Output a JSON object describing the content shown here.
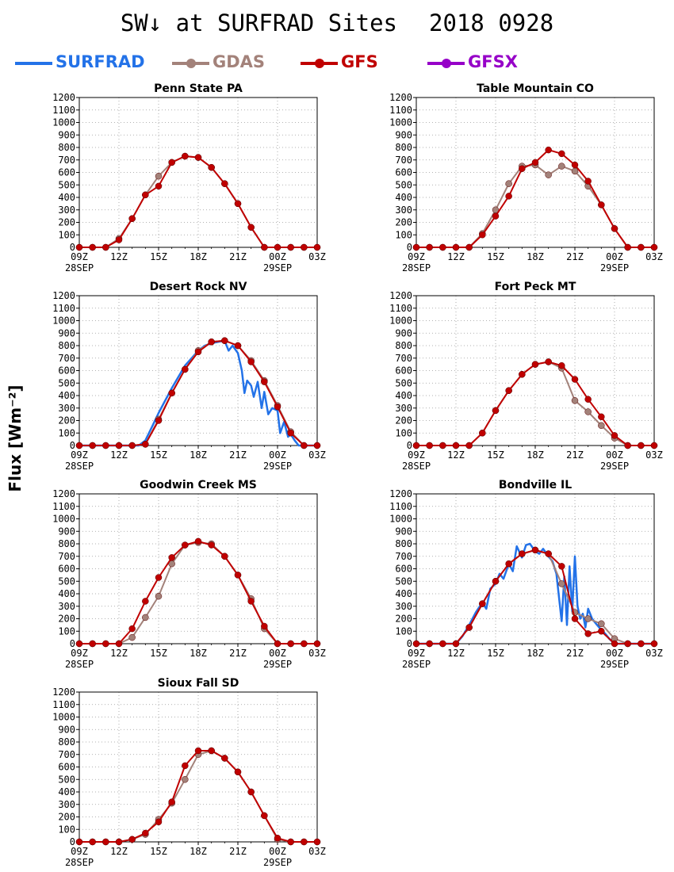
{
  "title": {
    "main": "SW↓ at SURFRAD Sites",
    "date": "2018 0928"
  },
  "legend": [
    {
      "name": "SURFRAD",
      "color": "#2372e8",
      "marker": false
    },
    {
      "name": "GDAS",
      "color": "#a3827a",
      "marker": true
    },
    {
      "name": "GFS",
      "color": "#c00000",
      "marker": true
    },
    {
      "name": "GFSX",
      "color": "#9600c8",
      "marker": true
    }
  ],
  "ylabel": "Flux [Wm⁻²]",
  "chart_data": [
    {
      "type": "line",
      "title": "Penn State PA",
      "ylim": [
        0,
        1200
      ],
      "xlim": [
        9,
        27
      ],
      "xticks": [
        9,
        12,
        15,
        18,
        21,
        24,
        27
      ],
      "xtick_labels": [
        "09Z",
        "12Z",
        "15Z",
        "18Z",
        "21Z",
        "00Z",
        "03Z"
      ],
      "date_labels": [
        {
          "x": 9,
          "text": "28SEP"
        },
        {
          "x": 24,
          "text": "29SEP"
        }
      ],
      "yticks": [
        0,
        100,
        200,
        300,
        400,
        500,
        600,
        700,
        800,
        900,
        1000,
        1100,
        1200
      ],
      "grid": true,
      "series": [
        {
          "name": "GDAS",
          "x": [
            9,
            10,
            11,
            12,
            13,
            14,
            15,
            16,
            17,
            18,
            19,
            20,
            21,
            22,
            23,
            24,
            25,
            26,
            27
          ],
          "values": [
            0,
            0,
            0,
            70,
            230,
            420,
            570,
            680,
            730,
            720,
            640,
            510,
            350,
            160,
            0,
            0,
            0,
            0,
            0
          ]
        },
        {
          "name": "GFS",
          "x": [
            9,
            10,
            11,
            12,
            13,
            14,
            15,
            16,
            17,
            18,
            19,
            20,
            21,
            22,
            23,
            24,
            25,
            26,
            27
          ],
          "values": [
            0,
            0,
            0,
            60,
            230,
            420,
            490,
            680,
            730,
            720,
            640,
            510,
            350,
            160,
            0,
            0,
            0,
            0,
            0
          ]
        }
      ]
    },
    {
      "type": "line",
      "title": "Table Mountain CO",
      "ylim": [
        0,
        1200
      ],
      "xlim": [
        9,
        27
      ],
      "xticks": [
        9,
        12,
        15,
        18,
        21,
        24,
        27
      ],
      "xtick_labels": [
        "09Z",
        "12Z",
        "15Z",
        "18Z",
        "21Z",
        "00Z",
        "03Z"
      ],
      "date_labels": [
        {
          "x": 9,
          "text": "28SEP"
        },
        {
          "x": 24,
          "text": "29SEP"
        }
      ],
      "yticks": [
        0,
        100,
        200,
        300,
        400,
        500,
        600,
        700,
        800,
        900,
        1000,
        1100,
        1200
      ],
      "grid": true,
      "series": [
        {
          "name": "GDAS",
          "x": [
            9,
            10,
            11,
            12,
            13,
            14,
            15,
            16,
            17,
            18,
            19,
            20,
            21,
            22,
            23,
            24,
            25,
            26,
            27
          ],
          "values": [
            0,
            0,
            0,
            0,
            0,
            110,
            300,
            510,
            650,
            660,
            580,
            650,
            610,
            490,
            340,
            150,
            0,
            0,
            0
          ]
        },
        {
          "name": "GFS",
          "x": [
            9,
            10,
            11,
            12,
            13,
            14,
            15,
            16,
            17,
            18,
            19,
            20,
            21,
            22,
            23,
            24,
            25,
            26,
            27
          ],
          "values": [
            0,
            0,
            0,
            0,
            0,
            100,
            250,
            410,
            630,
            680,
            780,
            750,
            660,
            530,
            340,
            150,
            0,
            0,
            0
          ]
        }
      ]
    },
    {
      "type": "line",
      "title": "Desert Rock NV",
      "ylim": [
        0,
        1200
      ],
      "xlim": [
        9,
        27
      ],
      "xticks": [
        9,
        12,
        15,
        18,
        21,
        24,
        27
      ],
      "xtick_labels": [
        "09Z",
        "12Z",
        "15Z",
        "18Z",
        "21Z",
        "00Z",
        "03Z"
      ],
      "date_labels": [
        {
          "x": 9,
          "text": "28SEP"
        },
        {
          "x": 24,
          "text": "29SEP"
        }
      ],
      "yticks": [
        0,
        100,
        200,
        300,
        400,
        500,
        600,
        700,
        800,
        900,
        1000,
        1100,
        1200
      ],
      "grid": true,
      "series": [
        {
          "name": "SURFRAD",
          "x": [
            9,
            13.5,
            14,
            14.5,
            15,
            15.5,
            16,
            16.5,
            17,
            17.5,
            18,
            18.5,
            19,
            19.5,
            20,
            20.3,
            20.6,
            21,
            21.3,
            21.5,
            21.7,
            22,
            22.2,
            22.5,
            22.8,
            23,
            23.3,
            23.6,
            24,
            24.2,
            24.5,
            24.8,
            25,
            25.3,
            25.6,
            27
          ],
          "values": [
            0,
            0,
            40,
            150,
            260,
            360,
            460,
            550,
            640,
            700,
            760,
            800,
            820,
            830,
            840,
            760,
            800,
            740,
            600,
            420,
            520,
            480,
            390,
            510,
            300,
            430,
            250,
            300,
            280,
            100,
            190,
            70,
            90,
            40,
            0,
            0
          ]
        },
        {
          "name": "GDAS",
          "x": [
            9,
            10,
            11,
            12,
            13,
            14,
            15,
            16,
            17,
            18,
            19,
            20,
            21,
            22,
            23,
            24,
            25,
            26,
            27
          ],
          "values": [
            0,
            0,
            0,
            0,
            0,
            10,
            210,
            420,
            610,
            760,
            830,
            840,
            800,
            680,
            520,
            320,
            110,
            0,
            0
          ]
        },
        {
          "name": "GFS",
          "x": [
            9,
            10,
            11,
            12,
            13,
            14,
            15,
            16,
            17,
            18,
            19,
            20,
            21,
            22,
            23,
            24,
            25,
            26,
            27
          ],
          "values": [
            0,
            0,
            0,
            0,
            0,
            10,
            200,
            420,
            610,
            750,
            830,
            840,
            800,
            670,
            510,
            310,
            100,
            0,
            0
          ]
        }
      ]
    },
    {
      "type": "line",
      "title": "Fort Peck MT",
      "ylim": [
        0,
        1200
      ],
      "xlim": [
        9,
        27
      ],
      "xticks": [
        9,
        12,
        15,
        18,
        21,
        24,
        27
      ],
      "xtick_labels": [
        "09Z",
        "12Z",
        "15Z",
        "18Z",
        "21Z",
        "00Z",
        "03Z"
      ],
      "date_labels": [
        {
          "x": 9,
          "text": "28SEP"
        },
        {
          "x": 24,
          "text": "29SEP"
        }
      ],
      "yticks": [
        0,
        100,
        200,
        300,
        400,
        500,
        600,
        700,
        800,
        900,
        1000,
        1100,
        1200
      ],
      "grid": true,
      "series": [
        {
          "name": "GDAS",
          "x": [
            9,
            10,
            11,
            12,
            13,
            14,
            15,
            16,
            17,
            18,
            19,
            20,
            21,
            22,
            23,
            24,
            25,
            26,
            27
          ],
          "values": [
            0,
            0,
            0,
            0,
            0,
            100,
            280,
            440,
            570,
            650,
            670,
            620,
            360,
            270,
            160,
            60,
            0,
            0,
            0
          ]
        },
        {
          "name": "GFS",
          "x": [
            9,
            10,
            11,
            12,
            13,
            14,
            15,
            16,
            17,
            18,
            19,
            20,
            21,
            22,
            23,
            24,
            25,
            26,
            27
          ],
          "values": [
            0,
            0,
            0,
            0,
            0,
            100,
            280,
            440,
            570,
            650,
            670,
            640,
            530,
            370,
            230,
            80,
            0,
            0,
            0
          ]
        }
      ]
    },
    {
      "type": "line",
      "title": "Goodwin Creek MS",
      "ylim": [
        0,
        1200
      ],
      "xlim": [
        9,
        27
      ],
      "xticks": [
        9,
        12,
        15,
        18,
        21,
        24,
        27
      ],
      "xtick_labels": [
        "09Z",
        "12Z",
        "15Z",
        "18Z",
        "21Z",
        "00Z",
        "03Z"
      ],
      "date_labels": [
        {
          "x": 9,
          "text": "28SEP"
        },
        {
          "x": 24,
          "text": "29SEP"
        }
      ],
      "yticks": [
        0,
        100,
        200,
        300,
        400,
        500,
        600,
        700,
        800,
        900,
        1000,
        1100,
        1200
      ],
      "grid": true,
      "series": [
        {
          "name": "GDAS",
          "x": [
            9,
            10,
            11,
            12,
            13,
            14,
            15,
            16,
            17,
            18,
            19,
            20,
            21,
            22,
            23,
            24,
            25,
            26,
            27
          ],
          "values": [
            0,
            0,
            0,
            0,
            50,
            210,
            380,
            640,
            790,
            810,
            800,
            700,
            550,
            360,
            120,
            0,
            0,
            0,
            0
          ]
        },
        {
          "name": "GFS",
          "x": [
            9,
            10,
            11,
            12,
            13,
            14,
            15,
            16,
            17,
            18,
            19,
            20,
            21,
            22,
            23,
            24,
            25,
            26,
            27
          ],
          "values": [
            0,
            0,
            0,
            0,
            120,
            340,
            530,
            690,
            790,
            820,
            790,
            700,
            550,
            340,
            140,
            0,
            0,
            0,
            0
          ]
        }
      ]
    },
    {
      "type": "line",
      "title": "Bondville IL",
      "ylim": [
        0,
        1200
      ],
      "xlim": [
        9,
        27
      ],
      "xticks": [
        9,
        12,
        15,
        18,
        21,
        24,
        27
      ],
      "xtick_labels": [
        "09Z",
        "12Z",
        "15Z",
        "18Z",
        "21Z",
        "00Z",
        "03Z"
      ],
      "date_labels": [
        {
          "x": 9,
          "text": "28SEP"
        },
        {
          "x": 24,
          "text": "29SEP"
        }
      ],
      "yticks": [
        0,
        100,
        200,
        300,
        400,
        500,
        600,
        700,
        800,
        900,
        1000,
        1100,
        1200
      ],
      "grid": true,
      "series": [
        {
          "name": "SURFRAD",
          "x": [
            9,
            12,
            12.5,
            13,
            13.5,
            14,
            14.3,
            14.6,
            15,
            15.3,
            15.6,
            16,
            16.3,
            16.6,
            17,
            17.3,
            17.6,
            18,
            18.3,
            18.6,
            19,
            19.3,
            19.6,
            20,
            20.2,
            20.4,
            20.6,
            20.8,
            21,
            21.2,
            21.4,
            21.6,
            21.8,
            22,
            22.3,
            22.6,
            23,
            23.3,
            23.6,
            24,
            27
          ],
          "values": [
            0,
            0,
            60,
            150,
            250,
            330,
            280,
            440,
            480,
            560,
            520,
            640,
            580,
            780,
            690,
            790,
            800,
            740,
            720,
            760,
            700,
            660,
            560,
            180,
            540,
            150,
            620,
            260,
            700,
            300,
            200,
            240,
            130,
            280,
            200,
            160,
            110,
            80,
            40,
            0,
            0
          ]
        },
        {
          "name": "GDAS",
          "x": [
            9,
            10,
            11,
            12,
            13,
            14,
            15,
            16,
            17,
            18,
            19,
            20,
            21,
            22,
            23,
            24,
            25,
            26,
            27
          ],
          "values": [
            0,
            0,
            0,
            0,
            130,
            320,
            500,
            640,
            720,
            750,
            720,
            480,
            250,
            200,
            160,
            40,
            0,
            0,
            0
          ]
        },
        {
          "name": "GFS",
          "x": [
            9,
            10,
            11,
            12,
            13,
            14,
            15,
            16,
            17,
            18,
            19,
            20,
            21,
            22,
            23,
            24,
            25,
            26,
            27
          ],
          "values": [
            0,
            0,
            0,
            0,
            130,
            320,
            500,
            640,
            720,
            750,
            720,
            620,
            200,
            80,
            100,
            0,
            0,
            0,
            0
          ]
        }
      ]
    },
    {
      "type": "line",
      "title": "Sioux Fall SD",
      "ylim": [
        0,
        1200
      ],
      "xlim": [
        9,
        27
      ],
      "xticks": [
        9,
        12,
        15,
        18,
        21,
        24,
        27
      ],
      "xtick_labels": [
        "09Z",
        "12Z",
        "15Z",
        "18Z",
        "21Z",
        "00Z",
        "03Z"
      ],
      "date_labels": [
        {
          "x": 9,
          "text": "28SEP"
        },
        {
          "x": 24,
          "text": "29SEP"
        }
      ],
      "yticks": [
        0,
        100,
        200,
        300,
        400,
        500,
        600,
        700,
        800,
        900,
        1000,
        1100,
        1200
      ],
      "grid": true,
      "series": [
        {
          "name": "GDAS",
          "x": [
            9,
            10,
            11,
            12,
            13,
            14,
            15,
            16,
            17,
            18,
            19,
            20,
            21,
            22,
            23,
            24,
            25,
            26,
            27
          ],
          "values": [
            0,
            0,
            0,
            0,
            20,
            60,
            180,
            310,
            500,
            700,
            730,
            670,
            560,
            400,
            210,
            20,
            0,
            0,
            0
          ]
        },
        {
          "name": "GFS",
          "x": [
            9,
            10,
            11,
            12,
            13,
            14,
            15,
            16,
            17,
            18,
            19,
            20,
            21,
            22,
            23,
            24,
            25,
            26,
            27
          ],
          "values": [
            0,
            0,
            0,
            0,
            20,
            70,
            160,
            320,
            610,
            730,
            730,
            670,
            560,
            400,
            210,
            30,
            0,
            0,
            0
          ]
        }
      ]
    }
  ]
}
